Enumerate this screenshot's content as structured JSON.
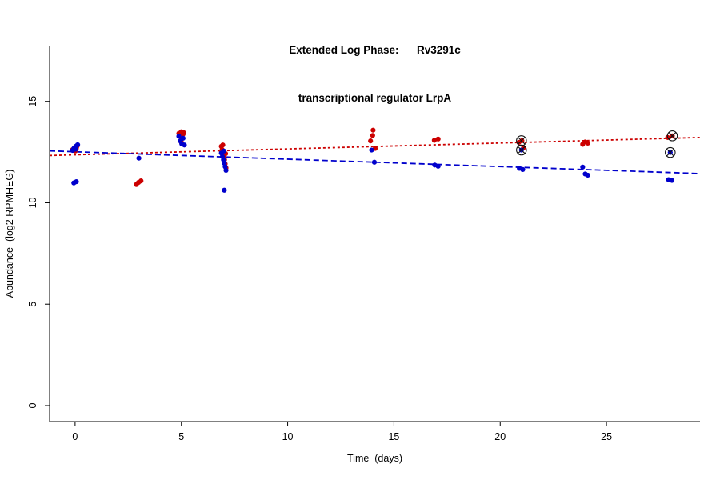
{
  "chart_data": {
    "type": "scatter",
    "title_line1": "Extended Log Phase:      Rv3291c",
    "title_line2": "transcriptional regulator LrpA",
    "xlabel": "Time  (days)",
    "ylabel": "Abundance  (log2 RPMHEG)",
    "xlim": [
      -1.2,
      29.4
    ],
    "ylim": [
      -0.79,
      17.75
    ],
    "xticks": [
      0,
      5,
      10,
      15,
      20,
      25
    ],
    "yticks": [
      0,
      5,
      10,
      15
    ],
    "grid": false,
    "legend": "none",
    "flag_color": "#111111",
    "flagged": [
      [
        21.0,
        13.06
      ],
      [
        21.0,
        12.6
      ],
      [
        28.1,
        13.3
      ],
      [
        28.0,
        12.48
      ]
    ],
    "series": [
      {
        "name": "red",
        "color": "#CC0000",
        "dash": "3 3",
        "trend": {
          "x1": -1.2,
          "y1": 12.33,
          "x2": 29.4,
          "y2": 13.22
        },
        "points": [
          [
            -0.12,
            12.62
          ],
          [
            -0.04,
            12.7
          ],
          [
            0.02,
            12.76
          ],
          [
            0.1,
            12.8
          ],
          [
            0.06,
            12.68
          ],
          [
            0.0,
            12.55
          ],
          [
            2.88,
            10.9
          ],
          [
            2.98,
            11.0
          ],
          [
            3.1,
            11.08
          ],
          [
            4.88,
            13.42
          ],
          [
            4.94,
            13.3
          ],
          [
            5.0,
            13.5
          ],
          [
            5.02,
            13.18
          ],
          [
            5.08,
            13.38
          ],
          [
            5.12,
            13.45
          ],
          [
            5.0,
            12.98
          ],
          [
            6.88,
            12.78
          ],
          [
            6.92,
            12.62
          ],
          [
            6.97,
            12.5
          ],
          [
            7.0,
            12.3
          ],
          [
            7.03,
            12.12
          ],
          [
            7.06,
            11.92
          ],
          [
            7.1,
            11.72
          ],
          [
            6.95,
            12.85
          ],
          [
            7.08,
            12.42
          ],
          [
            13.9,
            13.05
          ],
          [
            14.0,
            13.32
          ],
          [
            14.02,
            13.58
          ],
          [
            14.12,
            12.68
          ],
          [
            16.9,
            13.08
          ],
          [
            17.08,
            13.14
          ],
          [
            20.88,
            12.98
          ],
          [
            21.02,
            13.06
          ],
          [
            21.1,
            12.72
          ],
          [
            23.88,
            12.88
          ],
          [
            24.0,
            13.0
          ],
          [
            24.12,
            12.94
          ],
          [
            27.88,
            13.22
          ],
          [
            28.1,
            13.3
          ]
        ]
      },
      {
        "name": "blue",
        "color": "#0000CC",
        "dash": "7 4",
        "trend": {
          "x1": -1.2,
          "y1": 12.56,
          "x2": 29.4,
          "y2": 11.44
        },
        "points": [
          [
            -0.12,
            12.58
          ],
          [
            -0.06,
            12.68
          ],
          [
            0.0,
            12.74
          ],
          [
            0.06,
            12.8
          ],
          [
            0.12,
            12.86
          ],
          [
            0.02,
            12.64
          ],
          [
            -0.06,
            10.98
          ],
          [
            0.06,
            11.04
          ],
          [
            3.0,
            12.2
          ],
          [
            4.88,
            13.28
          ],
          [
            4.95,
            13.05
          ],
          [
            5.02,
            12.9
          ],
          [
            5.08,
            13.18
          ],
          [
            5.14,
            12.85
          ],
          [
            6.88,
            12.45
          ],
          [
            6.93,
            12.28
          ],
          [
            6.98,
            12.12
          ],
          [
            7.02,
            11.95
          ],
          [
            7.06,
            11.78
          ],
          [
            7.1,
            11.6
          ],
          [
            7.0,
            12.55
          ],
          [
            7.02,
            10.62
          ],
          [
            13.95,
            12.6
          ],
          [
            14.08,
            12.0
          ],
          [
            16.92,
            11.86
          ],
          [
            17.08,
            11.8
          ],
          [
            20.9,
            11.7
          ],
          [
            21.06,
            11.64
          ],
          [
            21.0,
            12.6
          ],
          [
            23.88,
            11.76
          ],
          [
            24.0,
            11.42
          ],
          [
            24.12,
            11.36
          ],
          [
            27.92,
            11.14
          ],
          [
            28.08,
            11.1
          ],
          [
            28.0,
            12.48
          ]
        ]
      }
    ]
  }
}
